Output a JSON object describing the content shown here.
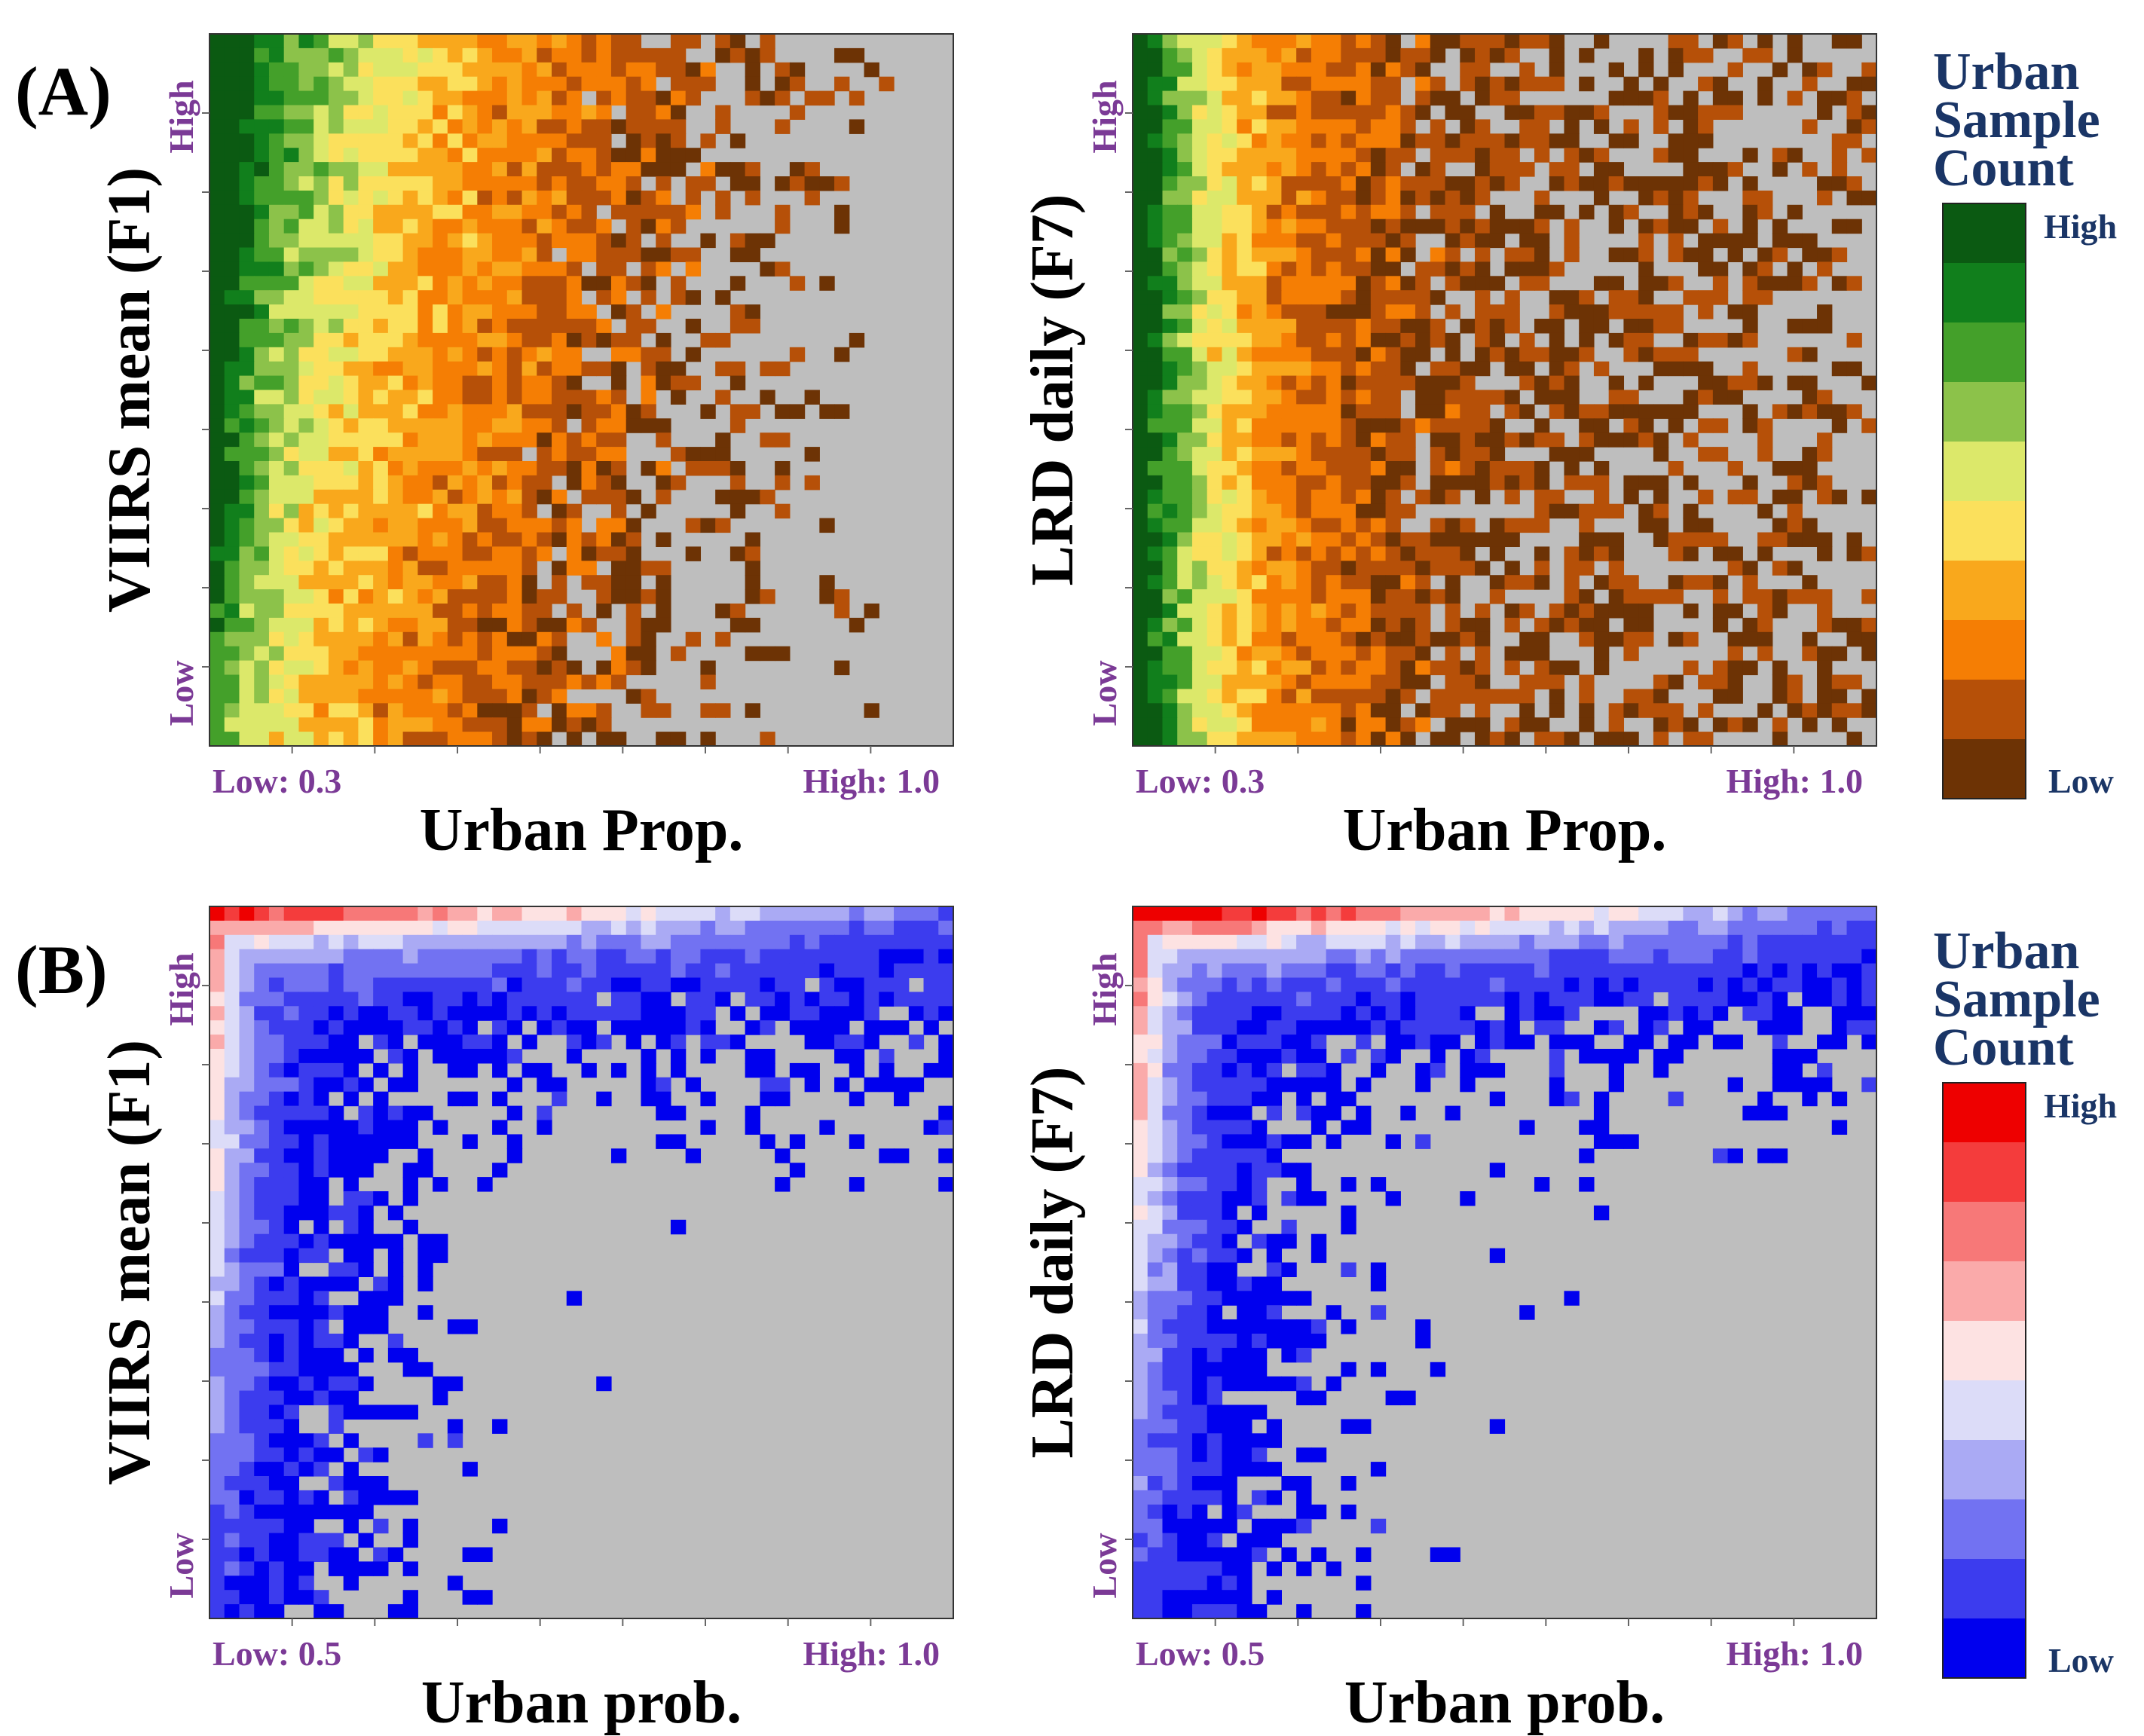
{
  "figure": {
    "panel_labels": [
      "(A)",
      "(B)"
    ]
  },
  "chart_data": [
    {
      "type": "heatmap",
      "panel": "A",
      "position": "top-left",
      "ylabel": "VIIRS mean (F1)",
      "xlabel": "Urban Prop.",
      "x_tick_low": "Low: 0.3",
      "x_tick_high": "High: 1.0",
      "y_tick_low": "Low",
      "y_tick_high": "High",
      "xlim": [
        0.3,
        1.0
      ],
      "grid_size": [
        50,
        50
      ],
      "colormap": "green-yellow-orange-brown",
      "pattern": "Counts concentrated at low urban proportion, highest near x≈0.3 and high VIIRS; sparse brown cells extending to the right",
      "background_color": "#bebebe"
    },
    {
      "type": "heatmap",
      "panel": "A",
      "position": "top-right",
      "ylabel": "LRD daily (F7)",
      "xlabel": "Urban Prop.",
      "x_tick_low": "Low: 0.3",
      "x_tick_high": "High: 1.0",
      "y_tick_low": "Low",
      "y_tick_high": "High",
      "xlim": [
        0.3,
        1.0
      ],
      "grid_size": [
        50,
        50
      ],
      "colormap": "green-yellow-orange-brown",
      "pattern": "Dense low-count brown cells across most of the range; highest counts in leftmost column",
      "background_color": "#bebebe"
    },
    {
      "type": "heatmap",
      "panel": "B",
      "position": "bottom-left",
      "ylabel": "VIIRS mean (F1)",
      "xlabel": "Urban prob.",
      "x_tick_low": "Low: 0.5",
      "x_tick_high": "High: 1.0",
      "y_tick_low": "Low",
      "y_tick_high": "High",
      "xlim": [
        0.5,
        1.0
      ],
      "grid_size": [
        50,
        50
      ],
      "colormap": "blue-white-red",
      "pattern": "L-shaped distribution along left edge and top edge; high counts near top-left corner",
      "background_color": "#bebebe"
    },
    {
      "type": "heatmap",
      "panel": "B",
      "position": "bottom-right",
      "ylabel": "LRD daily (F7)",
      "xlabel": "Urban prob.",
      "x_tick_low": "Low: 0.5",
      "x_tick_high": "High: 1.0",
      "y_tick_low": "Low",
      "y_tick_high": "High",
      "xlim": [
        0.5,
        1.0
      ],
      "grid_size": [
        50,
        50
      ],
      "colormap": "blue-white-red",
      "pattern": "L-shaped distribution along left and top edges; red high counts at top-left corner",
      "background_color": "#bebebe"
    }
  ],
  "legends": [
    {
      "title": [
        "Urban",
        "Sample",
        "Count"
      ],
      "high_label": "High",
      "low_label": "Low",
      "colors_top_to_bottom": [
        "#0b5a12",
        "#117f1c",
        "#44a02a",
        "#8cc24a",
        "#dce86a",
        "#fbe05c",
        "#f9a81c",
        "#f57e04",
        "#b65008",
        "#6d3305"
      ]
    },
    {
      "title": [
        "Urban",
        "Sample",
        "Count"
      ],
      "high_label": "High",
      "low_label": "Low",
      "colors_top_to_bottom": [
        "#ee0000",
        "#f43c3c",
        "#f77878",
        "#faaaaa",
        "#fde2e2",
        "#dcdcf8",
        "#aaaaf4",
        "#7272f2",
        "#3c3cee",
        "#0000ee"
      ]
    }
  ],
  "colors": {
    "title_navy": "#1a3566",
    "tick_purple": "#7b3a96",
    "grid_bg": "#bebebe"
  }
}
